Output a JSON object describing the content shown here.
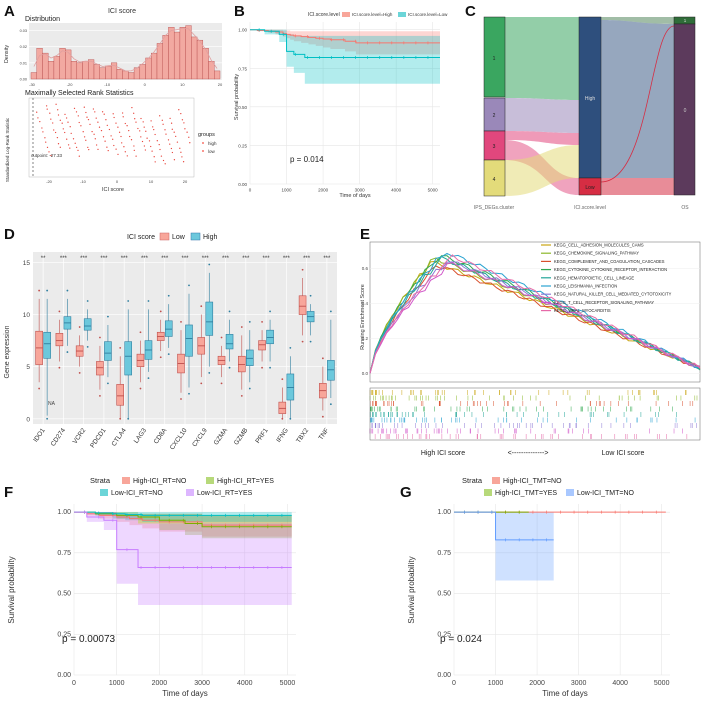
{
  "panels": {
    "A": {
      "letter": "A",
      "hist_title": "ICI score",
      "hist_subtitle": "Distribution",
      "hist_ylabel": "Density",
      "hist_xticks": [
        "-30",
        "-20",
        "-10",
        "0",
        "10",
        "20"
      ],
      "hist_yticks": [
        "0.00",
        "0.01",
        "0.02",
        "0.03"
      ],
      "hist_bins": [
        0.004,
        0.019,
        0.016,
        0.011,
        0.014,
        0.019,
        0.018,
        0.011,
        0.01,
        0.011,
        0.012,
        0.009,
        0.007,
        0.008,
        0.01,
        0.006,
        0.005,
        0.004,
        0.007,
        0.009,
        0.013,
        0.016,
        0.022,
        0.027,
        0.032,
        0.029,
        0.032,
        0.033,
        0.026,
        0.024,
        0.019,
        0.011,
        0.005
      ],
      "rank_title": "Maximally Selected Rank Statistics",
      "rank_ylabel": "Standardized Log-Rank Statistic",
      "rank_xlabel": "ICI score",
      "rank_xticks": [
        "-20",
        "-10",
        "0",
        "10",
        "20"
      ],
      "cutpoint_label": "cutpoint: -27.33",
      "legend_title": "groups",
      "legend_items": [
        "high",
        "low"
      ]
    },
    "B": {
      "letter": "B",
      "legend_title": "ICI.score.level",
      "legend_items": [
        "ICI.score.level=High",
        "ICI.score.level=Low"
      ],
      "ylabel": "Survival probability",
      "xlabel": "Time of days",
      "xticks": [
        "0",
        "1000",
        "2000",
        "3000",
        "4000",
        "5000"
      ],
      "yticks": [
        "0.00",
        "0.25",
        "0.50",
        "0.75",
        "1.00"
      ],
      "pvalue": "p = 0.014"
    },
    "C": {
      "letter": "C",
      "axis_labels": [
        "IPS_DEGs.cluster",
        "ICI.score.level",
        "OS"
      ],
      "cluster_labels": [
        "1",
        "2",
        "3",
        "4"
      ],
      "level_labels": [
        "High",
        "Low"
      ],
      "os_labels": [
        "1",
        "0"
      ]
    },
    "D": {
      "letter": "D",
      "legend_title": "ICI score",
      "legend_items": [
        "Low",
        "High"
      ],
      "ylabel": "Gene expression",
      "yticks": [
        "0",
        "5",
        "10",
        "15"
      ],
      "stars": [
        "**",
        "***",
        "***",
        "***",
        "***",
        "***",
        "***",
        "***",
        "***",
        "***",
        "***",
        "***",
        "***",
        "***",
        "***"
      ],
      "na_label": "NA"
    },
    "E": {
      "letter": "E",
      "ylabel": "Running Enrichment Score",
      "yticks": [
        "0.0",
        "0.2",
        "0.4",
        "0.6"
      ],
      "high_label": "High ICI score",
      "low_label": "Low ICI score",
      "arrow_label": "<-------------->"
    },
    "F": {
      "letter": "F",
      "strata_title": "Strata",
      "legend_items": [
        "High-ICI_RT=NO",
        "High-ICI_RT=YES",
        "Low-ICI_RT=NO",
        "Low-ICI_RT=YES"
      ],
      "ylabel": "Survival probability",
      "xlabel": "Time of days",
      "xticks": [
        "0",
        "1000",
        "2000",
        "3000",
        "4000",
        "5000"
      ],
      "yticks": [
        "0.00",
        "0.25",
        "0.50",
        "0.75",
        "1.00"
      ],
      "pvalue": "p = 0.00073"
    },
    "G": {
      "letter": "G",
      "strata_title": "Strata",
      "legend_items": [
        "High-ICI_TMT=NO",
        "High-ICI_TMT=YES",
        "Low-ICI_TMT=NO"
      ],
      "ylabel": "Survival probability",
      "xlabel": "Time of days",
      "xticks": [
        "0",
        "1000",
        "2000",
        "3000",
        "4000",
        "5000"
      ],
      "yticks": [
        "0.00",
        "0.25",
        "0.50",
        "0.75",
        "1.00"
      ],
      "pvalue": "p = 0.024"
    }
  },
  "colors": {
    "high_red": "#f8766d",
    "low_cyan": "#00bfc4",
    "green": "#7cae00",
    "purple": "#c77cff",
    "box_low": "#f8a69a",
    "box_high": "#6cc8dc",
    "sankey": [
      "#3aa660",
      "#9a88b9",
      "#e1477d",
      "#e3db7a",
      "#2e4f7d",
      "#d62d43",
      "#2f6d39",
      "#5c3a5c"
    ]
  },
  "chart_data": [
    {
      "panel": "B",
      "type": "line",
      "title": "",
      "xlabel": "Time of days",
      "ylabel": "Survival probability",
      "xlim": [
        0,
        5200
      ],
      "ylim": [
        0,
        1.05
      ],
      "series": [
        {
          "name": "ICI.score.level=High",
          "color": "#f8766d",
          "x": [
            0,
            200,
            500,
            700,
            900,
            1000,
            1100,
            1200,
            1400,
            1600,
            1800,
            2000,
            2200,
            2600,
            2900,
            5200
          ],
          "y": [
            1.0,
            0.995,
            0.99,
            0.985,
            0.975,
            0.97,
            0.965,
            0.96,
            0.955,
            0.95,
            0.945,
            0.94,
            0.935,
            0.925,
            0.915,
            0.915
          ],
          "lower": [
            1.0,
            0.99,
            0.98,
            0.97,
            0.955,
            0.945,
            0.935,
            0.925,
            0.915,
            0.905,
            0.895,
            0.885,
            0.875,
            0.86,
            0.84,
            0.84
          ],
          "upper": [
            1.0,
            1.0,
            1.0,
            1.0,
            0.995,
            0.995,
            0.99,
            0.99,
            0.99,
            0.99,
            0.99,
            0.99,
            0.99,
            0.99,
            0.99,
            0.99
          ]
        },
        {
          "name": "ICI.score.level=Low",
          "color": "#00bfc4",
          "x": [
            0,
            400,
            800,
            1000,
            1200,
            1500,
            5200
          ],
          "y": [
            1.0,
            0.99,
            0.97,
            0.86,
            0.84,
            0.82,
            0.82
          ],
          "lower": [
            1.0,
            0.97,
            0.92,
            0.76,
            0.72,
            0.65,
            0.65
          ],
          "upper": [
            1.0,
            1.0,
            1.0,
            0.97,
            0.96,
            0.96,
            0.96
          ]
        }
      ]
    },
    {
      "panel": "D",
      "type": "bar",
      "title": "",
      "xlabel": "",
      "ylabel": "Gene expression",
      "ylim": [
        -0.5,
        16
      ],
      "categories": [
        "IDO1",
        "CD274",
        "VCR2",
        "PDCD1",
        "CTLA4",
        "LAG3",
        "CD8A",
        "CXCL10",
        "CXCL9",
        "GZMA",
        "GZMB",
        "PRF1",
        "IFNG",
        "TBX2",
        "TNF"
      ],
      "series": [
        {
          "name": "Low",
          "color": "#f8a69a",
          "boxes": [
            [
              3.5,
              5.2,
              6.8,
              8.4,
              11.5
            ],
            [
              5.5,
              7.0,
              7.5,
              8.2,
              9.5
            ],
            [
              5.0,
              6.0,
              6.5,
              7.0,
              8.0
            ],
            [
              2.8,
              4.2,
              4.9,
              5.5,
              7.0
            ],
            [
              0.0,
              1.3,
              2.2,
              3.3,
              6.0
            ],
            [
              3.5,
              5.0,
              5.6,
              6.2,
              7.5
            ],
            [
              6.5,
              7.5,
              7.9,
              8.3,
              9.5
            ],
            [
              2.5,
              4.4,
              5.3,
              6.2,
              8.5
            ],
            [
              4.0,
              6.2,
              7.0,
              7.8,
              10.0
            ],
            [
              4.0,
              5.2,
              5.6,
              6.0,
              7.0
            ],
            [
              2.8,
              4.5,
              5.2,
              6.0,
              8.0
            ],
            [
              5.5,
              6.6,
              7.1,
              7.5,
              8.5
            ],
            [
              0.0,
              0.5,
              1.0,
              1.6,
              3.0
            ],
            [
              8.0,
              10.0,
              10.8,
              11.8,
              13.5
            ],
            [
              0.8,
              2.0,
              2.7,
              3.4,
              5.0
            ]
          ]
        },
        {
          "name": "High",
          "color": "#6cc8dc",
          "boxes": [
            [
              0.3,
              5.8,
              7.2,
              8.3,
              11.5
            ],
            [
              7.0,
              8.6,
              9.2,
              9.8,
              11.5
            ],
            [
              7.5,
              8.5,
              8.9,
              9.6,
              10.5
            ],
            [
              4.0,
              5.6,
              6.3,
              7.4,
              9.0
            ],
            [
              0.0,
              4.2,
              6.0,
              7.4,
              10.5
            ],
            [
              4.5,
              5.7,
              6.6,
              7.5,
              10.5
            ],
            [
              6.8,
              7.9,
              8.6,
              9.4,
              11.0
            ],
            [
              3.0,
              6.0,
              7.7,
              9.0,
              12.0
            ],
            [
              5.0,
              8.0,
              9.3,
              11.2,
              14.0
            ],
            [
              5.5,
              6.7,
              7.2,
              8.1,
              9.5
            ],
            [
              3.5,
              5.1,
              5.8,
              6.6,
              8.5
            ],
            [
              5.5,
              7.2,
              7.8,
              8.5,
              9.5
            ],
            [
              0.0,
              1.8,
              3.0,
              4.3,
              6.0
            ],
            [
              8.0,
              9.3,
              9.8,
              10.3,
              11.0
            ],
            [
              2.0,
              3.7,
              4.7,
              5.6,
              9.5
            ]
          ]
        }
      ]
    },
    {
      "panel": "E",
      "type": "line",
      "title": "",
      "xlabel": "",
      "ylabel": "Running Enrichment Score",
      "ylim": [
        -0.05,
        0.75
      ],
      "series": [
        {
          "name": "KEGG_CELL_ADHESION_MOLECULES_CAMS",
          "color": "#c9a512",
          "peak": 0.64
        },
        {
          "name": "KEGG_CHEMOKINE_SIGNALING_PATHWAY",
          "color": "#8cb82a",
          "peak": 0.66
        },
        {
          "name": "KEGG_COMPLEMENT_AND_COAGULATION_CASCADES",
          "color": "#d9502d",
          "peak": 0.62
        },
        {
          "name": "KEGG_CYTOKINE_CYTOKINE_RECEPTOR_INTERACTION",
          "color": "#2fa84f",
          "peak": 0.68
        },
        {
          "name": "KEGG_HEMATOPOIETIC_CELL_LINEAGE",
          "color": "#22a598",
          "peak": 0.66
        },
        {
          "name": "KEGG_LEISHMANIA_INFECTION",
          "color": "#2aa3d1",
          "peak": 0.7
        },
        {
          "name": "KEGG_NATURAL_KILLER_CELL_MEDIATED_CYTOTOXICITY",
          "color": "#8e7bd6",
          "peak": 0.65
        },
        {
          "name": "KEGG_T_CELL_RECEPTOR_SIGNALING_PATHWAY",
          "color": "#d055c9",
          "peak": 0.63
        },
        {
          "name": "KEGG_VIRAL_MYOCARDITIS",
          "color": "#e66aa8",
          "peak": 0.67
        }
      ]
    },
    {
      "panel": "F",
      "type": "line",
      "title": "",
      "xlabel": "Time of days",
      "ylabel": "Survival probability",
      "xlim": [
        0,
        5200
      ],
      "ylim": [
        0,
        1.05
      ],
      "series": [
        {
          "name": "High-ICI_RT=NO",
          "color": "#f8766d",
          "x": [
            0,
            300,
            600,
            1000,
            1300,
            1600,
            2000,
            3000,
            5100
          ],
          "y": [
            1.0,
            0.99,
            0.98,
            0.97,
            0.96,
            0.95,
            0.94,
            0.92,
            0.92
          ],
          "lower": [
            1.0,
            0.98,
            0.96,
            0.94,
            0.92,
            0.9,
            0.88,
            0.85,
            0.85
          ],
          "upper": [
            1.0,
            1.0,
            1.0,
            0.99,
            0.99,
            0.99,
            0.99,
            0.98,
            0.98
          ]
        },
        {
          "name": "High-ICI_RT=YES",
          "color": "#7cae00",
          "x": [
            0,
            500,
            1000,
            1500,
            2000,
            2600,
            3000,
            5100
          ],
          "y": [
            1.0,
            0.99,
            0.98,
            0.97,
            0.95,
            0.93,
            0.91,
            0.91
          ],
          "lower": [
            1.0,
            0.98,
            0.96,
            0.93,
            0.89,
            0.86,
            0.84,
            0.84
          ],
          "upper": [
            1.0,
            1.0,
            1.0,
            0.99,
            0.99,
            0.99,
            0.98,
            0.98
          ]
        },
        {
          "name": "Low-ICI_RT=NO",
          "color": "#00bfc4",
          "x": [
            0,
            500,
            900,
            1200,
            1600,
            5100
          ],
          "y": [
            1.0,
            0.995,
            0.99,
            0.985,
            0.98,
            0.98
          ],
          "lower": [
            1.0,
            0.98,
            0.96,
            0.95,
            0.94,
            0.94
          ],
          "upper": [
            1.0,
            1.0,
            1.0,
            1.0,
            1.0,
            1.0
          ]
        },
        {
          "name": "Low-ICI_RT=YES",
          "color": "#c77cff",
          "x": [
            0,
            300,
            700,
            1000,
            1500,
            5100
          ],
          "y": [
            1.0,
            0.97,
            0.95,
            0.77,
            0.66,
            0.66
          ],
          "lower": [
            1.0,
            0.94,
            0.89,
            0.56,
            0.43,
            0.43
          ],
          "upper": [
            1.0,
            1.0,
            1.0,
            0.98,
            0.93,
            0.93
          ]
        }
      ]
    },
    {
      "panel": "G",
      "type": "line",
      "title": "",
      "xlabel": "Time of days",
      "ylabel": "Survival probability",
      "xlim": [
        0,
        5200
      ],
      "ylim": [
        0,
        1.05
      ],
      "series": [
        {
          "name": "High-ICI_TMT=NO",
          "color": "#f8766d",
          "x": [
            0,
            5100
          ],
          "y": [
            1.0,
            1.0
          ],
          "lower": [
            1.0,
            1.0
          ],
          "upper": [
            1.0,
            1.0
          ]
        },
        {
          "name": "High-ICI_TMT=YES",
          "color": "#7cae00",
          "x": [
            0,
            1800
          ],
          "y": [
            1.0,
            1.0
          ],
          "lower": [
            1.0,
            1.0
          ],
          "upper": [
            1.0,
            1.0
          ]
        },
        {
          "name": "Low-ICI_TMT=NO",
          "color": "#619cff",
          "x": [
            0,
            1000,
            2400
          ],
          "y": [
            1.0,
            0.83,
            0.83
          ],
          "lower": [
            1.0,
            0.58,
            0.58
          ],
          "upper": [
            1.0,
            1.0,
            1.0
          ]
        }
      ]
    }
  ]
}
